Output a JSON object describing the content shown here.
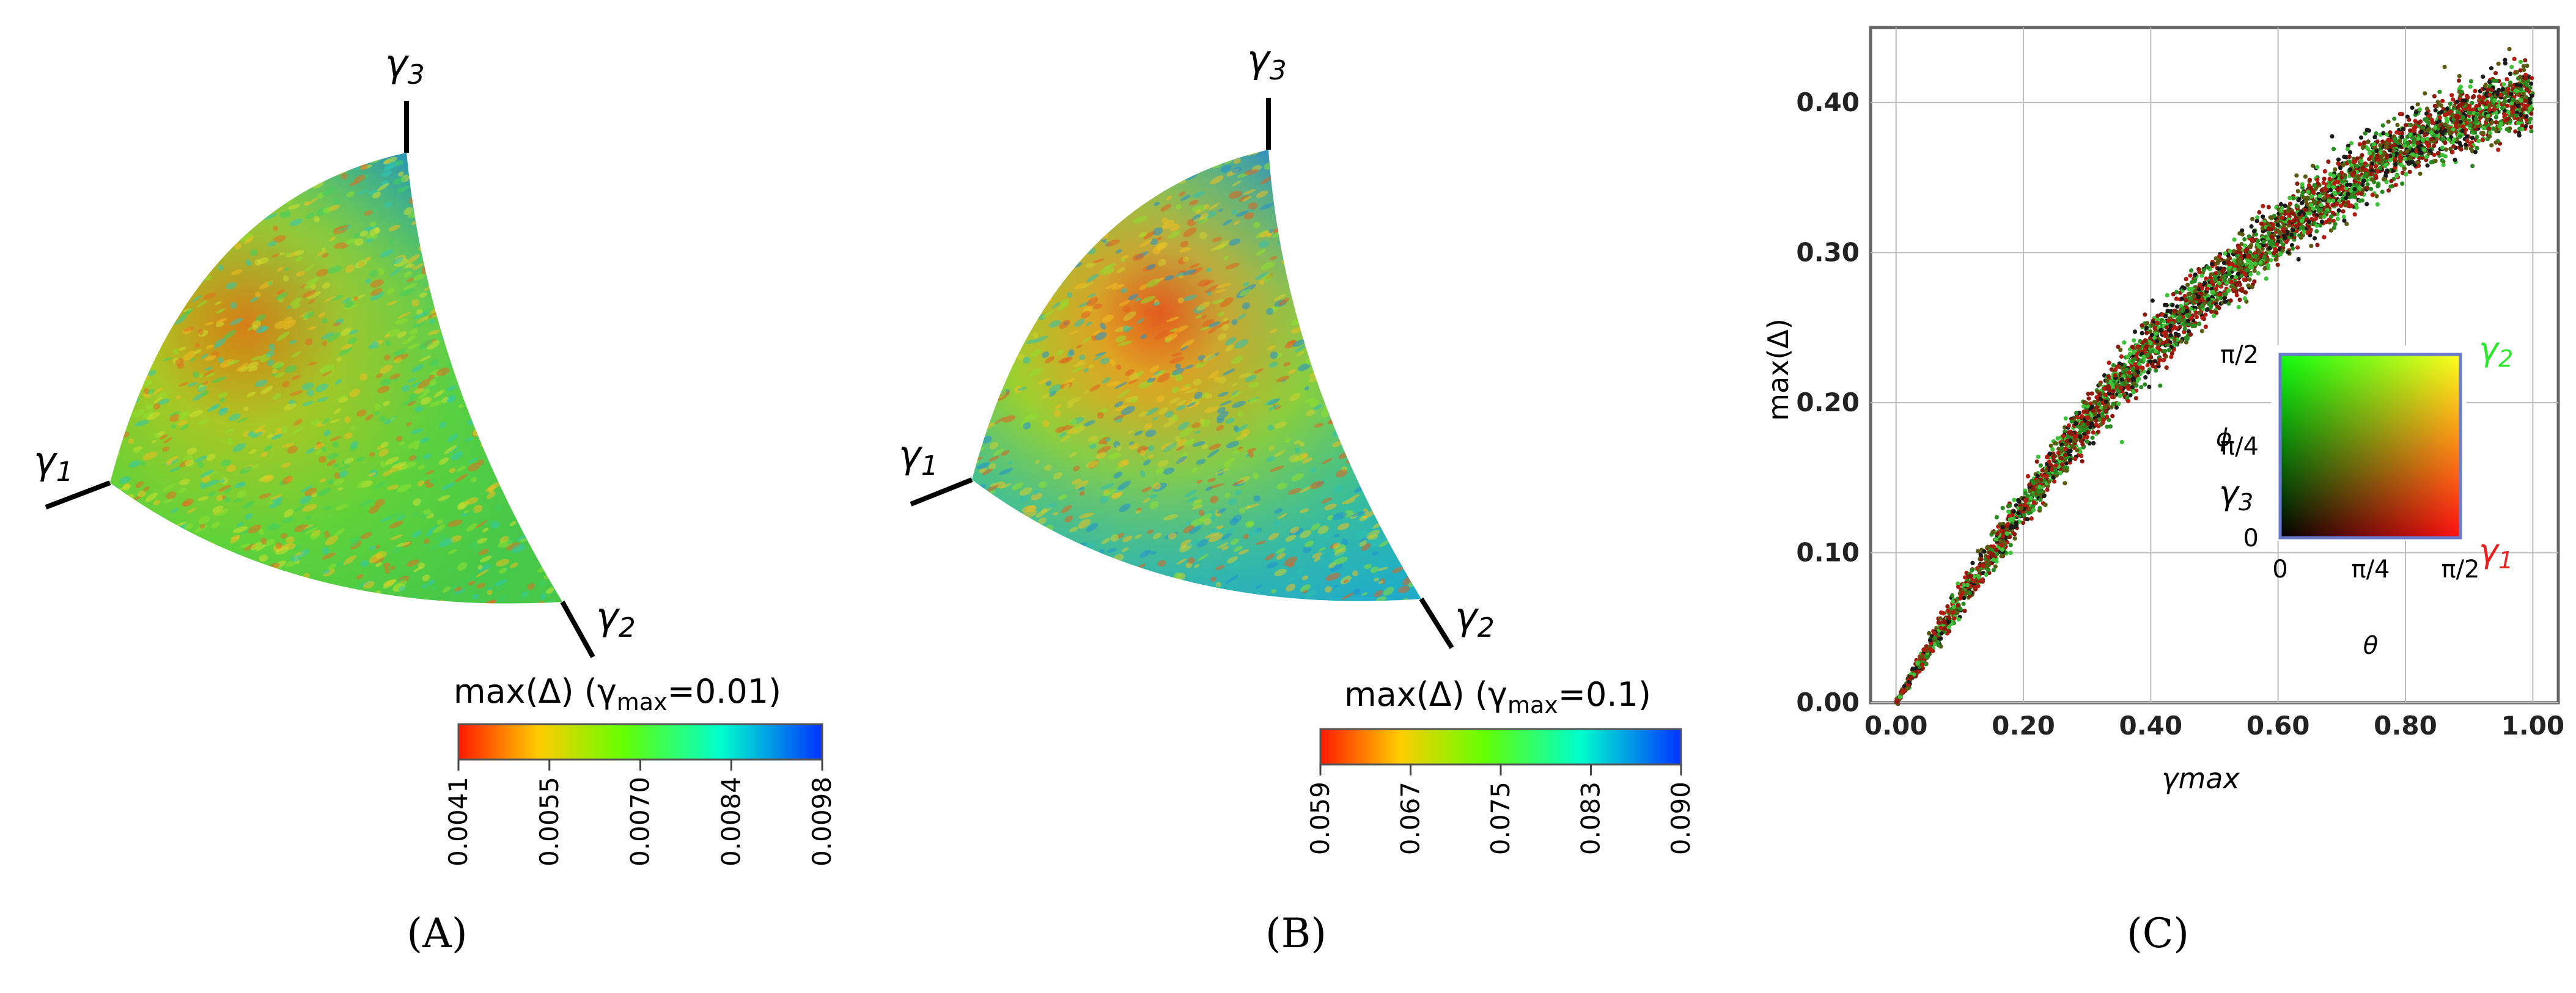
{
  "panels": [
    {
      "id": "A",
      "caption": "(A)",
      "axis_labels": {
        "g1": "γ",
        "g1_sub": "1",
        "g2": "γ",
        "g2_sub": "2",
        "g3": "γ",
        "g3_sub": "3"
      },
      "colorbar": {
        "title_prefix": "max(Δ) (γ",
        "title_sub": "max",
        "title_suffix": "=0.01)",
        "ticks": [
          "0.0041",
          "0.0055",
          "0.0070",
          "0.0084",
          "0.0098"
        ],
        "colors": [
          "#ff1a00",
          "#ffcc00",
          "#66ff00",
          "#00ffcc",
          "#0033ff"
        ]
      }
    },
    {
      "id": "B",
      "caption": "(B)",
      "axis_labels": {
        "g1": "γ",
        "g1_sub": "1",
        "g2": "γ",
        "g2_sub": "2",
        "g3": "γ",
        "g3_sub": "3"
      },
      "colorbar": {
        "title_prefix": "max(Δ) (γ",
        "title_sub": "max",
        "title_suffix": "=0.1)",
        "ticks": [
          "0.059",
          "0.067",
          "0.075",
          "0.083",
          "0.090"
        ],
        "colors": [
          "#ff1a00",
          "#ffcc00",
          "#66ff00",
          "#00ffcc",
          "#0033ff"
        ]
      }
    }
  ],
  "scatter_caption": "(C)",
  "inset": {
    "corner_labels": {
      "top_right": "γ",
      "top_right_sub": "2",
      "bottom_right": "γ",
      "bottom_right_sub": "1",
      "left": "γ",
      "left_sub": "3"
    },
    "y_axis_label": "ϕ",
    "x_axis_label": "θ",
    "y_ticks": [
      "0",
      "π/4",
      "π/2"
    ],
    "x_ticks": [
      "0",
      "π/4",
      "π/2"
    ],
    "colors": {
      "green": "#2ee62e",
      "red": "#e82020"
    }
  },
  "chart_data": {
    "type": "scatter",
    "xlabel": "γmax",
    "ylabel": "max(Δ)",
    "xlim": [
      0,
      1
    ],
    "ylim": [
      0,
      0.45
    ],
    "x_ticks": [
      "0.00",
      "0.20",
      "0.40",
      "0.60",
      "0.80",
      "1.00"
    ],
    "y_ticks": [
      "0.00",
      "0.10",
      "0.20",
      "0.30",
      "0.40"
    ],
    "grid": true,
    "band_center": [
      [
        0.0,
        0.0
      ],
      [
        0.05,
        0.035
      ],
      [
        0.1,
        0.068
      ],
      [
        0.15,
        0.1
      ],
      [
        0.2,
        0.13
      ],
      [
        0.25,
        0.16
      ],
      [
        0.3,
        0.188
      ],
      [
        0.35,
        0.214
      ],
      [
        0.4,
        0.237
      ],
      [
        0.45,
        0.258
      ],
      [
        0.5,
        0.277
      ],
      [
        0.55,
        0.295
      ],
      [
        0.6,
        0.312
      ],
      [
        0.65,
        0.328
      ],
      [
        0.7,
        0.344
      ],
      [
        0.75,
        0.358
      ],
      [
        0.8,
        0.37
      ],
      [
        0.85,
        0.381
      ],
      [
        0.9,
        0.39
      ],
      [
        0.95,
        0.398
      ],
      [
        1.0,
        0.404
      ]
    ],
    "band_half_width": [
      [
        0.0,
        0.002
      ],
      [
        0.1,
        0.01
      ],
      [
        0.2,
        0.013
      ],
      [
        0.4,
        0.017
      ],
      [
        0.6,
        0.018
      ],
      [
        0.8,
        0.019
      ],
      [
        1.0,
        0.02
      ]
    ],
    "point_colors": [
      "#1a1a1a",
      "#2a8a22",
      "#b01c10",
      "#3fc23a",
      "#5a5a10",
      "#8a1a0c"
    ]
  }
}
